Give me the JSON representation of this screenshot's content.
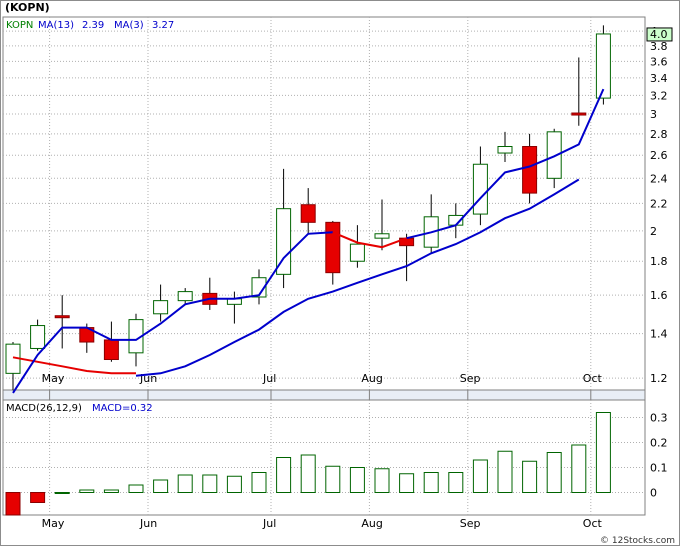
{
  "ticker_title": "(KOPN)",
  "watermark": "© 12Stocks.com",
  "chart_data": [
    {
      "type": "candlestick",
      "legend": [
        {
          "text": "KOPN",
          "color": "#008000"
        },
        {
          "text": "MA(13)",
          "color": "#0000cc"
        },
        {
          "text": "2.39",
          "color": "#0000cc"
        },
        {
          "text": "MA(3)",
          "color": "#0000cc"
        },
        {
          "text": "3.27",
          "color": "#0000cc"
        }
      ],
      "y_scale": "log",
      "ylim": [
        1.12,
        4.2
      ],
      "y_ticks": [
        4.0,
        3.8,
        3.6,
        3.4,
        3.2,
        3.0,
        2.8,
        2.6,
        2.4,
        2.2,
        2.0,
        1.8,
        1.6,
        1.4,
        1.2
      ],
      "x_labels": [
        {
          "label": "May",
          "index": 1
        },
        {
          "label": "Jun",
          "index": 5
        },
        {
          "label": "Jul",
          "index": 10
        },
        {
          "label": "Aug",
          "index": 14
        },
        {
          "label": "Sep",
          "index": 18
        },
        {
          "label": "Oct",
          "index": 23
        }
      ],
      "last_price_label": "4.0",
      "candles": [
        {
          "o": 1.22,
          "h": 1.36,
          "l": 1.15,
          "c": 1.35
        },
        {
          "o": 1.33,
          "h": 1.47,
          "l": 1.32,
          "c": 1.44
        },
        {
          "o": 1.49,
          "h": 1.6,
          "l": 1.33,
          "c": 1.48
        },
        {
          "o": 1.43,
          "h": 1.45,
          "l": 1.31,
          "c": 1.36
        },
        {
          "o": 1.37,
          "h": 1.46,
          "l": 1.27,
          "c": 1.28
        },
        {
          "o": 1.31,
          "h": 1.5,
          "l": 1.25,
          "c": 1.47
        },
        {
          "o": 1.5,
          "h": 1.66,
          "l": 1.46,
          "c": 1.57
        },
        {
          "o": 1.57,
          "h": 1.64,
          "l": 1.55,
          "c": 1.62
        },
        {
          "o": 1.61,
          "h": 1.7,
          "l": 1.52,
          "c": 1.55
        },
        {
          "o": 1.55,
          "h": 1.62,
          "l": 1.45,
          "c": 1.58
        },
        {
          "o": 1.59,
          "h": 1.75,
          "l": 1.55,
          "c": 1.7
        },
        {
          "o": 1.72,
          "h": 2.48,
          "l": 1.64,
          "c": 2.16
        },
        {
          "o": 2.19,
          "h": 2.32,
          "l": 1.98,
          "c": 2.06
        },
        {
          "o": 2.06,
          "h": 2.07,
          "l": 1.66,
          "c": 1.73
        },
        {
          "o": 1.8,
          "h": 2.04,
          "l": 1.76,
          "c": 1.91
        },
        {
          "o": 1.95,
          "h": 2.23,
          "l": 1.87,
          "c": 1.98
        },
        {
          "o": 1.95,
          "h": 1.98,
          "l": 1.68,
          "c": 1.9
        },
        {
          "o": 1.89,
          "h": 2.27,
          "l": 1.85,
          "c": 2.1
        },
        {
          "o": 2.04,
          "h": 2.2,
          "l": 1.95,
          "c": 2.11
        },
        {
          "o": 2.12,
          "h": 2.68,
          "l": 2.04,
          "c": 2.52
        },
        {
          "o": 2.62,
          "h": 2.82,
          "l": 2.54,
          "c": 2.68
        },
        {
          "o": 2.68,
          "h": 2.8,
          "l": 2.2,
          "c": 2.28
        },
        {
          "o": 2.4,
          "h": 2.85,
          "l": 2.32,
          "c": 2.82
        },
        {
          "o": 3.01,
          "h": 3.65,
          "l": 2.88,
          "c": 2.99
        },
        {
          "o": 3.17,
          "h": 4.08,
          "l": 3.1,
          "c": 3.96
        }
      ],
      "ma13": [
        {
          "i": 5,
          "v": 1.21
        },
        {
          "i": 6,
          "v": 1.22
        },
        {
          "i": 7,
          "v": 1.25
        },
        {
          "i": 8,
          "v": 1.3
        },
        {
          "i": 9,
          "v": 1.36
        },
        {
          "i": 10,
          "v": 1.42
        },
        {
          "i": 11,
          "v": 1.51
        },
        {
          "i": 12,
          "v": 1.58
        },
        {
          "i": 13,
          "v": 1.62
        },
        {
          "i": 14,
          "v": 1.67
        },
        {
          "i": 15,
          "v": 1.72
        },
        {
          "i": 16,
          "v": 1.77
        },
        {
          "i": 17,
          "v": 1.85
        },
        {
          "i": 18,
          "v": 1.91
        },
        {
          "i": 19,
          "v": 1.99
        },
        {
          "i": 20,
          "v": 2.09
        },
        {
          "i": 21,
          "v": 2.16
        },
        {
          "i": 22,
          "v": 2.27
        },
        {
          "i": 23,
          "v": 2.39
        }
      ],
      "ma3_red": [
        {
          "i": 0,
          "v": 1.29
        },
        {
          "i": 1,
          "v": 1.27
        },
        {
          "i": 2,
          "v": 1.25
        },
        {
          "i": 3,
          "v": 1.23
        },
        {
          "i": 4,
          "v": 1.22
        },
        {
          "i": 5,
          "v": 1.22
        }
      ],
      "ma3_blue_a": [
        {
          "i": 0,
          "v": 1.14
        },
        {
          "i": 1,
          "v": 1.3
        },
        {
          "i": 2,
          "v": 1.43
        },
        {
          "i": 3,
          "v": 1.43
        },
        {
          "i": 4,
          "v": 1.37
        },
        {
          "i": 5,
          "v": 1.37
        },
        {
          "i": 6,
          "v": 1.45
        },
        {
          "i": 7,
          "v": 1.55
        },
        {
          "i": 8,
          "v": 1.58
        },
        {
          "i": 9,
          "v": 1.58
        },
        {
          "i": 10,
          "v": 1.6
        },
        {
          "i": 11,
          "v": 1.82
        },
        {
          "i": 12,
          "v": 1.98
        },
        {
          "i": 13,
          "v": 1.99
        }
      ],
      "ma3_red_b": [
        {
          "i": 13,
          "v": 1.99
        },
        {
          "i": 14,
          "v": 1.92
        },
        {
          "i": 15,
          "v": 1.89
        },
        {
          "i": 16,
          "v": 1.95
        }
      ],
      "ma3_blue_b": [
        {
          "i": 16,
          "v": 1.95
        },
        {
          "i": 17,
          "v": 1.99
        },
        {
          "i": 18,
          "v": 2.04
        },
        {
          "i": 19,
          "v": 2.24
        },
        {
          "i": 20,
          "v": 2.45
        },
        {
          "i": 21,
          "v": 2.5
        },
        {
          "i": 22,
          "v": 2.59
        },
        {
          "i": 23,
          "v": 2.7
        },
        {
          "i": 24,
          "v": 3.27
        }
      ]
    },
    {
      "type": "bar",
      "legend": [
        {
          "text": "MACD(26,12,9)",
          "color": "#000000"
        },
        {
          "text": "MACD=0.32",
          "color": "#0000cc"
        }
      ],
      "ylim": [
        -0.09,
        0.37
      ],
      "y_ticks": [
        0.3,
        0.2,
        0.1,
        0.0
      ],
      "x_labels": [
        {
          "label": "May",
          "index": 1
        },
        {
          "label": "Jun",
          "index": 5
        },
        {
          "label": "Jul",
          "index": 10
        },
        {
          "label": "Aug",
          "index": 14
        },
        {
          "label": "Sep",
          "index": 18
        },
        {
          "label": "Oct",
          "index": 23
        }
      ],
      "values": [
        -0.09,
        -0.04,
        0.0,
        0.01,
        0.01,
        0.03,
        0.05,
        0.07,
        0.07,
        0.065,
        0.08,
        0.14,
        0.15,
        0.105,
        0.1,
        0.095,
        0.075,
        0.08,
        0.08,
        0.13,
        0.165,
        0.125,
        0.16,
        0.19,
        0.32
      ]
    }
  ]
}
